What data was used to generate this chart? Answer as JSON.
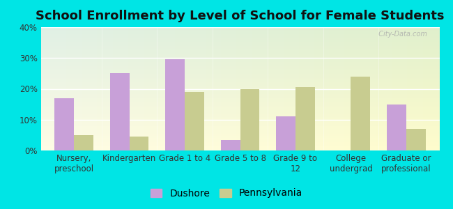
{
  "title": "School Enrollment by Level of School for Female Students",
  "categories": [
    "Nursery,\npreschool",
    "Kindergarten",
    "Grade 1 to 4",
    "Grade 5 to 8",
    "Grade 9 to\n12",
    "College\nundergrad",
    "Graduate or\nprofessional"
  ],
  "dushore": [
    17,
    25,
    29.5,
    3.5,
    11,
    0,
    15
  ],
  "pennsylvania": [
    5,
    4.5,
    19,
    20,
    20.5,
    24,
    7
  ],
  "dushore_color": "#c8a0d8",
  "pennsylvania_color": "#c8cc90",
  "background_outer": "#00e5e5",
  "ylim": [
    0,
    40
  ],
  "yticks": [
    0,
    10,
    20,
    30,
    40
  ],
  "ytick_labels": [
    "0%",
    "10%",
    "20%",
    "30%",
    "40%"
  ],
  "legend_labels": [
    "Dushore",
    "Pennsylvania"
  ],
  "title_fontsize": 13,
  "tick_fontsize": 8.5,
  "legend_fontsize": 10,
  "bar_width": 0.35
}
